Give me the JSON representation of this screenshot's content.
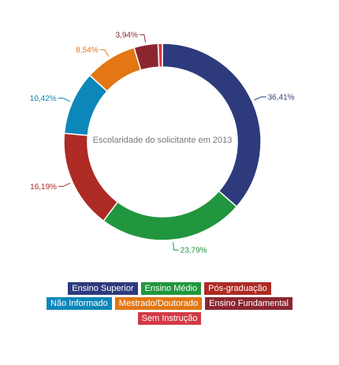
{
  "chart_data": {
    "type": "pie",
    "title": "Escolaridade do solicitante em 2013",
    "categories": [
      "Ensino Superior",
      "Ensino Médio",
      "Pós-graduação",
      "Não Informado",
      "Mestrado/Doutorado",
      "Ensino Fundamental",
      "Sem Instrução"
    ],
    "values": [
      36.41,
      23.79,
      16.19,
      10.42,
      8.54,
      3.94,
      0.71
    ],
    "labels": [
      "36,41%",
      "23,79%",
      "16,19%",
      "10,42%",
      "8,54%",
      "3,94%",
      ""
    ],
    "colors": [
      "#2d3a7c",
      "#21963e",
      "#ae2a24",
      "#0b87b9",
      "#e27713",
      "#8b2630",
      "#d23a45"
    ],
    "donut": true,
    "legend": "bottom"
  }
}
